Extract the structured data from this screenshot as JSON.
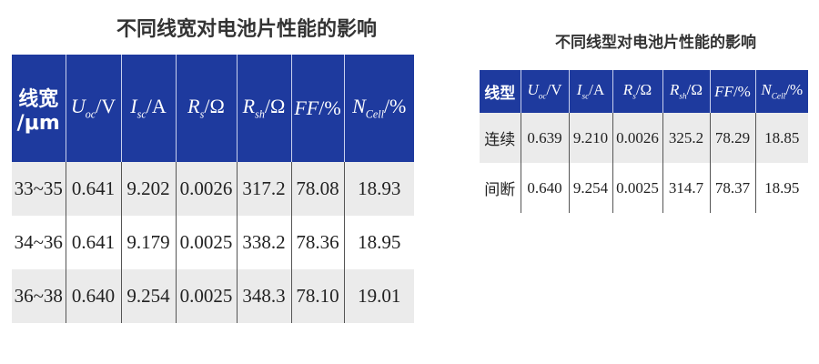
{
  "table1": {
    "title": "不同线宽对电池片性能的影响",
    "headers": [
      {
        "main": "线宽",
        "sub": "",
        "unit": "/μm"
      },
      {
        "main": "U",
        "sub": "oc",
        "unit": "/V"
      },
      {
        "main": "I",
        "sub": "sc",
        "unit": "/A"
      },
      {
        "main": "R",
        "sub": "s",
        "unit": "/Ω"
      },
      {
        "main": "R",
        "sub": "sh",
        "unit": "/Ω"
      },
      {
        "main": "FF",
        "sub": "",
        "unit": "/%"
      },
      {
        "main": "N",
        "sub": "Cell",
        "unit": "/%"
      }
    ],
    "rows": [
      [
        "33~35",
        "0.641",
        "9.202",
        "0.0026",
        "317.2",
        "78.08",
        "18.93"
      ],
      [
        "34~36",
        "0.641",
        "9.179",
        "0.0025",
        "338.2",
        "78.36",
        "18.95"
      ],
      [
        "36~38",
        "0.640",
        "9.254",
        "0.0025",
        "348.3",
        "78.10",
        "19.01"
      ]
    ]
  },
  "table2": {
    "title": "不同线型对电池片性能的影响",
    "headers": [
      {
        "main": "线型",
        "sub": "",
        "unit": ""
      },
      {
        "main": "U",
        "sub": "oc",
        "unit": "/V"
      },
      {
        "main": "I",
        "sub": "sc",
        "unit": "/A"
      },
      {
        "main": "R",
        "sub": "s",
        "unit": "/Ω"
      },
      {
        "main": "R",
        "sub": "sh",
        "unit": "/Ω"
      },
      {
        "main": "FF",
        "sub": "",
        "unit": "/%"
      },
      {
        "main": "N",
        "sub": "Cell",
        "unit": "/%"
      }
    ],
    "rows": [
      [
        "连续",
        "0.639",
        "9.210",
        "0.0026",
        "325.2",
        "78.29",
        "18.85"
      ],
      [
        "间断",
        "0.640",
        "9.254",
        "0.0025",
        "314.7",
        "78.37",
        "18.95"
      ]
    ]
  },
  "colors": {
    "header_bg": "#1e3a9e",
    "row_alt": "#ebebeb"
  }
}
